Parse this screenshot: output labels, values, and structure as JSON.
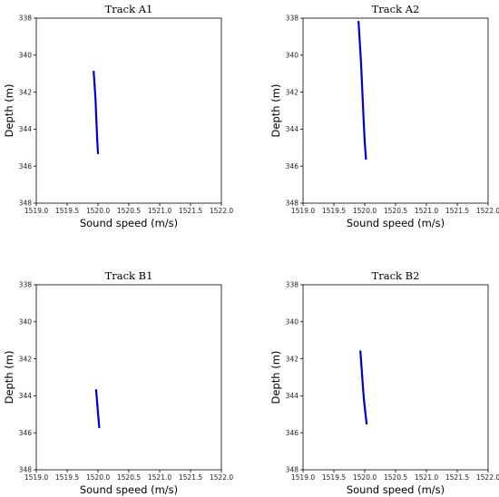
{
  "chart_data": [
    {
      "type": "scatter",
      "title": "Track A1",
      "xlabel": "Sound speed (m/s)",
      "ylabel": "Depth (m)",
      "xlim": [
        1519.0,
        1522.0
      ],
      "ylim": [
        338,
        348
      ],
      "y_inverted": true,
      "xticks": [
        "1519.0",
        "1519.5",
        "1520.0",
        "1520.5",
        "1521.0",
        "1521.5",
        "1522.0"
      ],
      "yticks": [
        "338",
        "340",
        "342",
        "344",
        "346",
        "348"
      ],
      "series": [
        {
          "color": "#0000cc",
          "x": [
            1519.93,
            1519.945,
            1519.96,
            1519.97,
            1519.98,
            1519.99,
            1520.0
          ],
          "y": [
            340.9,
            341.6,
            342.4,
            343.2,
            344.0,
            344.7,
            345.3
          ]
        }
      ]
    },
    {
      "type": "scatter",
      "title": "Track A2",
      "xlabel": "Sound speed (m/s)",
      "ylabel": "Depth (m)",
      "xlim": [
        1519.0,
        1522.0
      ],
      "ylim": [
        338,
        348
      ],
      "y_inverted": true,
      "xticks": [
        "1519.0",
        "1519.5",
        "1520.0",
        "1520.5",
        "1521.0",
        "1521.5",
        "1522.0"
      ],
      "yticks": [
        "338",
        "340",
        "342",
        "344",
        "346",
        "348"
      ],
      "series": [
        {
          "color": "#0000cc",
          "x": [
            1519.9,
            1519.92,
            1519.94,
            1519.955,
            1519.97,
            1519.985,
            1520.0,
            1520.02
          ],
          "y": [
            338.2,
            339.3,
            340.4,
            341.5,
            342.6,
            343.7,
            344.7,
            345.6
          ]
        }
      ]
    },
    {
      "type": "scatter",
      "title": "Track B1",
      "xlabel": "Sound speed (m/s)",
      "ylabel": "Depth (m)",
      "xlim": [
        1519.0,
        1522.0
      ],
      "ylim": [
        338,
        348
      ],
      "y_inverted": true,
      "xticks": [
        "1519.0",
        "1519.5",
        "1520.0",
        "1520.5",
        "1521.0",
        "1521.5",
        "1522.0"
      ],
      "yticks": [
        "338",
        "340",
        "342",
        "344",
        "346",
        "348"
      ],
      "series": [
        {
          "color": "#0000cc",
          "x": [
            1519.97,
            1519.98,
            1519.99,
            1520.0,
            1520.01,
            1520.02
          ],
          "y": [
            343.7,
            344.1,
            344.5,
            344.9,
            345.3,
            345.7
          ]
        }
      ]
    },
    {
      "type": "scatter",
      "title": "Track B2",
      "xlabel": "Sound speed (m/s)",
      "ylabel": "Depth (m)",
      "xlim": [
        1519.0,
        1522.0
      ],
      "ylim": [
        338,
        348
      ],
      "y_inverted": true,
      "xticks": [
        "1519.0",
        "1519.5",
        "1520.0",
        "1520.5",
        "1521.0",
        "1521.5",
        "1522.0"
      ],
      "yticks": [
        "338",
        "340",
        "342",
        "344",
        "346",
        "348"
      ],
      "series": [
        {
          "color": "#0000cc",
          "x": [
            1519.93,
            1519.945,
            1519.96,
            1519.975,
            1519.99,
            1520.01,
            1520.03
          ],
          "y": [
            341.6,
            342.3,
            343.0,
            343.7,
            344.3,
            344.9,
            345.5
          ]
        }
      ]
    }
  ]
}
